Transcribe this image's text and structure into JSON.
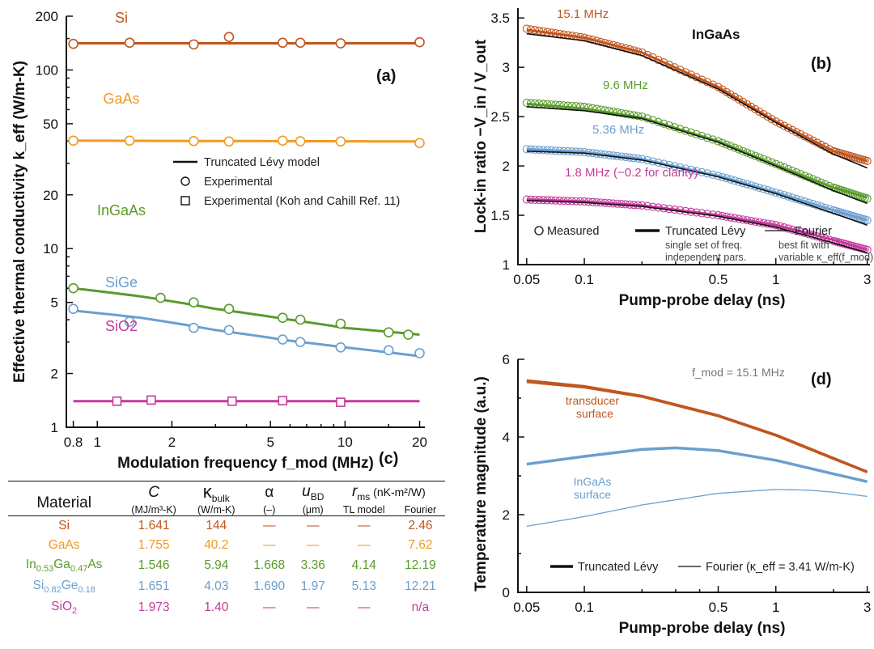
{
  "chart_data": [
    {
      "id": "a",
      "type": "line",
      "panel_label": "(a)",
      "xlabel": "Modulation frequency f_mod (MHz)",
      "ylabel": "Effective thermal conductivity k_eff (W/m-K)",
      "xscale": "log",
      "yscale": "log",
      "xlim": [
        0.75,
        21
      ],
      "ylim": [
        1,
        200
      ],
      "xticks": [
        0.8,
        1,
        2,
        5,
        10,
        20
      ],
      "yticks": [
        1,
        2,
        5,
        10,
        20,
        50,
        100,
        200
      ],
      "legend": [
        "Truncated Lévy model",
        "Experimental",
        "Experimental (Koh and Cahill Ref. 11)"
      ],
      "series": [
        {
          "name": "Si",
          "color": "#c0561f",
          "marker": "circle",
          "x": [
            0.8,
            1.35,
            2.45,
            3.4,
            5.6,
            6.6,
            9.6,
            20
          ],
          "y": [
            140,
            142,
            139,
            153,
            142,
            142,
            141,
            143
          ],
          "model": [
            [
              0.8,
              141
            ],
            [
              20,
              141
            ]
          ]
        },
        {
          "name": "GaAs",
          "color": "#f29a1f",
          "marker": "circle",
          "x": [
            0.8,
            1.35,
            2.45,
            3.4,
            5.6,
            6.6,
            9.6,
            20
          ],
          "y": [
            40.2,
            40.2,
            40.0,
            39.8,
            40.2,
            39.9,
            39.8,
            39.0
          ],
          "model": [
            [
              0.8,
              40.2
            ],
            [
              20,
              39.8
            ]
          ]
        },
        {
          "name": "InGaAs",
          "color": "#5a9a2c",
          "marker": "circle",
          "x": [
            0.8,
            1.8,
            2.45,
            3.4,
            5.6,
            6.6,
            9.6,
            15,
            18
          ],
          "y": [
            6.0,
            5.3,
            5.0,
            4.6,
            4.1,
            4.0,
            3.8,
            3.4,
            3.3
          ],
          "model": [
            [
              0.8,
              6.0
            ],
            [
              1.5,
              5.4
            ],
            [
              3,
              4.6
            ],
            [
              6,
              4.0
            ],
            [
              10,
              3.6
            ],
            [
              20,
              3.3
            ]
          ]
        },
        {
          "name": "SiGe",
          "color": "#6a9fcf",
          "marker": "circle",
          "x": [
            0.8,
            1.35,
            2.45,
            3.4,
            5.6,
            6.6,
            9.6,
            15,
            20
          ],
          "y": [
            4.6,
            3.9,
            3.6,
            3.5,
            3.1,
            3.0,
            2.8,
            2.7,
            2.6
          ],
          "model": [
            [
              0.8,
              4.5
            ],
            [
              1.5,
              4.1
            ],
            [
              3,
              3.5
            ],
            [
              6,
              3.05
            ],
            [
              10,
              2.8
            ],
            [
              20,
              2.5
            ]
          ]
        },
        {
          "name": "SiO2",
          "color": "#c43a9c",
          "marker": "square",
          "x": [
            1.2,
            1.65,
            3.5,
            5.6,
            9.6
          ],
          "y": [
            1.4,
            1.42,
            1.4,
            1.41,
            1.38
          ],
          "model": [
            [
              0.8,
              1.4
            ],
            [
              20,
              1.4
            ]
          ]
        }
      ]
    },
    {
      "id": "b",
      "type": "scatter",
      "panel_label": "(b)",
      "annotation": "InGaAs",
      "xlabel": "Pump-probe delay (ns)",
      "ylabel": "Lock-in ratio −V_in / V_out",
      "xscale": "log",
      "xlim": [
        0.045,
        3.1
      ],
      "ylim": [
        1,
        3.6
      ],
      "xticks": [
        0.05,
        0.1,
        0.5,
        1,
        3
      ],
      "yticks": [
        1,
        1.5,
        2,
        2.5,
        3,
        3.5
      ],
      "legend": [
        "Measured",
        "Truncated Lévy",
        "Fourier"
      ],
      "legend_sub": [
        "single set of freq.",
        "independent pars.",
        "best fit with",
        "variable κ_eff(f_mod)"
      ],
      "series": [
        {
          "name": "15.1 MHz",
          "color": "#c0561f",
          "measured": [
            [
              0.05,
              3.39
            ],
            [
              0.1,
              3.3
            ],
            [
              0.2,
              3.15
            ],
            [
              0.5,
              2.8
            ],
            [
              1,
              2.45
            ],
            [
              2,
              2.15
            ],
            [
              3,
              2.05
            ]
          ],
          "levy": [
            [
              0.05,
              3.38
            ],
            [
              0.1,
              3.3
            ],
            [
              0.2,
              3.15
            ],
            [
              0.5,
              2.8
            ],
            [
              1,
              2.45
            ],
            [
              2,
              2.15
            ],
            [
              3,
              2.05
            ]
          ],
          "fourier": [
            [
              0.05,
              3.34
            ],
            [
              0.1,
              3.27
            ],
            [
              0.2,
              3.12
            ],
            [
              0.5,
              2.78
            ],
            [
              1,
              2.44
            ],
            [
              2,
              2.12
            ],
            [
              3,
              1.98
            ]
          ]
        },
        {
          "name": "9.6 MHz",
          "color": "#5a9a2c",
          "measured": [
            [
              0.05,
              2.64
            ],
            [
              0.1,
              2.6
            ],
            [
              0.2,
              2.5
            ],
            [
              0.5,
              2.25
            ],
            [
              1,
              2.02
            ],
            [
              2,
              1.78
            ],
            [
              3,
              1.67
            ]
          ],
          "levy": [
            [
              0.05,
              2.63
            ],
            [
              0.1,
              2.58
            ],
            [
              0.2,
              2.49
            ],
            [
              0.5,
              2.25
            ],
            [
              1,
              2.01
            ],
            [
              2,
              1.78
            ],
            [
              3,
              1.68
            ]
          ],
          "fourier": [
            [
              0.05,
              2.6
            ],
            [
              0.1,
              2.56
            ],
            [
              0.2,
              2.48
            ],
            [
              0.5,
              2.24
            ],
            [
              1,
              2.0
            ],
            [
              2,
              1.75
            ],
            [
              3,
              1.62
            ]
          ]
        },
        {
          "name": "5.36 MHz",
          "color": "#6a9fcf",
          "measured": [
            [
              0.05,
              2.17
            ],
            [
              0.1,
              2.14
            ],
            [
              0.2,
              2.07
            ],
            [
              0.5,
              1.9
            ],
            [
              1,
              1.73
            ],
            [
              2,
              1.55
            ],
            [
              3,
              1.45
            ]
          ],
          "levy": [
            [
              0.05,
              2.17
            ],
            [
              0.1,
              2.14
            ],
            [
              0.2,
              2.07
            ],
            [
              0.5,
              1.9
            ],
            [
              1,
              1.73
            ],
            [
              2,
              1.55
            ],
            [
              3,
              1.45
            ]
          ],
          "fourier": [
            [
              0.05,
              2.15
            ],
            [
              0.1,
              2.13
            ],
            [
              0.2,
              2.06
            ],
            [
              0.5,
              1.89
            ],
            [
              1,
              1.72
            ],
            [
              2,
              1.52
            ],
            [
              3,
              1.4
            ]
          ]
        },
        {
          "name": "1.8 MHz (−0.2 for clarity)",
          "color": "#c43a9c",
          "measured": [
            [
              0.05,
              1.66
            ],
            [
              0.1,
              1.64
            ],
            [
              0.2,
              1.6
            ],
            [
              0.5,
              1.5
            ],
            [
              1,
              1.4
            ],
            [
              2,
              1.24
            ],
            [
              3,
              1.15
            ]
          ],
          "levy": [
            [
              0.05,
              1.66
            ],
            [
              0.1,
              1.64
            ],
            [
              0.2,
              1.6
            ],
            [
              0.5,
              1.5
            ],
            [
              1,
              1.4
            ],
            [
              2,
              1.25
            ],
            [
              3,
              1.15
            ]
          ],
          "fourier": [
            [
              0.05,
              1.65
            ],
            [
              0.1,
              1.63
            ],
            [
              0.2,
              1.59
            ],
            [
              0.5,
              1.49
            ],
            [
              1,
              1.38
            ],
            [
              2,
              1.22
            ],
            [
              3,
              1.12
            ]
          ]
        }
      ]
    },
    {
      "id": "d",
      "type": "line",
      "panel_label": "(d)",
      "annotation": "f_mod = 15.1 MHz",
      "xlabel": "Pump-probe delay (ns)",
      "ylabel": "Temperature magnitude (a.u.)",
      "xscale": "log",
      "xlim": [
        0.045,
        3.1
      ],
      "ylim": [
        0,
        6
      ],
      "xticks": [
        0.05,
        0.1,
        0.5,
        1,
        3
      ],
      "yticks": [
        0,
        2,
        4,
        6
      ],
      "legend": [
        "Truncated Lévy",
        "Fourier (κ_eff = 3.41 W/m-K)"
      ],
      "series": [
        {
          "name": "transducer surface",
          "color": "#c0561f",
          "levy": [
            [
              0.05,
              5.45
            ],
            [
              0.1,
              5.3
            ],
            [
              0.2,
              5.05
            ],
            [
              0.5,
              4.55
            ],
            [
              1,
              4.05
            ],
            [
              2,
              3.45
            ],
            [
              3,
              3.1
            ]
          ],
          "fourier": [
            [
              0.05,
              5.4
            ],
            [
              0.1,
              5.26
            ],
            [
              0.2,
              5.02
            ],
            [
              0.5,
              4.52
            ],
            [
              1,
              4.02
            ],
            [
              2,
              3.42
            ],
            [
              3,
              3.08
            ]
          ]
        },
        {
          "name": "InGaAs surface",
          "color": "#6a9fcf",
          "levy": [
            [
              0.05,
              3.3
            ],
            [
              0.1,
              3.5
            ],
            [
              0.2,
              3.68
            ],
            [
              0.3,
              3.72
            ],
            [
              0.5,
              3.65
            ],
            [
              1,
              3.4
            ],
            [
              2,
              3.05
            ],
            [
              3,
              2.85
            ]
          ],
          "fourier": [
            [
              0.05,
              1.7
            ],
            [
              0.1,
              1.95
            ],
            [
              0.2,
              2.25
            ],
            [
              0.5,
              2.55
            ],
            [
              1,
              2.65
            ],
            [
              1.5,
              2.63
            ],
            [
              2,
              2.58
            ],
            [
              3,
              2.47
            ]
          ]
        }
      ]
    }
  ],
  "table": {
    "panel_label": "(c)",
    "headers": {
      "material": "Material",
      "c": "C",
      "kbulk": "κ",
      "kbulk_sub": "bulk",
      "alpha": "α",
      "ubd": "u",
      "ubd_sub": "BD",
      "rms": "r",
      "rms_sub": "ms",
      "rms_unit": " (nK-m²/W)"
    },
    "units": {
      "c": "(MJ/m³-K)",
      "kbulk": "(W/m-K)",
      "alpha": "(–)",
      "ubd": "(μm)",
      "tl": "TL model",
      "fourier": "Fourier"
    },
    "rows": [
      {
        "material": "Si",
        "color": "#c0561f",
        "c": "1.641",
        "kbulk": "144",
        "alpha": "—",
        "ubd": "—",
        "tl": "—",
        "fourier": "2.46"
      },
      {
        "material": "GaAs",
        "color": "#f29a1f",
        "c": "1.755",
        "kbulk": "40.2",
        "alpha": "—",
        "ubd": "—",
        "tl": "—",
        "fourier": "7.62"
      },
      {
        "material": "In0.53Ga0.47As",
        "color": "#5a9a2c",
        "c": "1.546",
        "kbulk": "5.94",
        "alpha": "1.668",
        "ubd": "3.36",
        "tl": "4.14",
        "fourier": "12.19"
      },
      {
        "material": "Si0.82Ge0.18",
        "color": "#6a9fcf",
        "c": "1.651",
        "kbulk": "4.03",
        "alpha": "1.690",
        "ubd": "1.97",
        "tl": "5.13",
        "fourier": "12.21"
      },
      {
        "material": "SiO2",
        "color": "#c43a9c",
        "c": "1.973",
        "kbulk": "1.40",
        "alpha": "—",
        "ubd": "—",
        "tl": "—",
        "fourier": "n/a"
      }
    ]
  }
}
